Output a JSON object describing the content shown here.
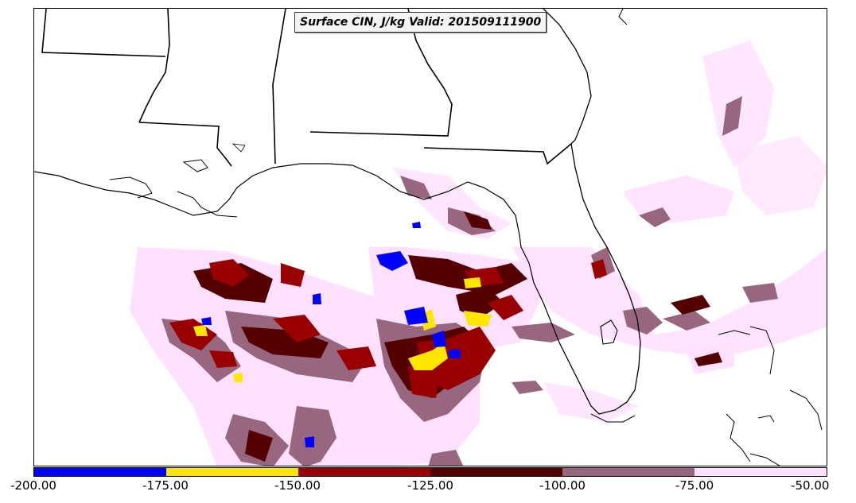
{
  "title": "Surface CIN, J/kg Valid: 201509111900",
  "legend": {
    "colors": [
      "#0000ff",
      "#ffe600",
      "#990000",
      "#550000",
      "#996680",
      "#ffe0ff"
    ],
    "ticks": [
      "-200.00",
      "-175.00",
      "-150.00",
      "-125.00",
      "-100.00",
      "-75.00",
      "-50.00"
    ]
  },
  "map": {
    "region": "US Gulf Coast, Gulf of Mexico, Florida and Bahamas",
    "field": "Surface CIN",
    "units": "J/kg",
    "valid": "201509111900"
  }
}
